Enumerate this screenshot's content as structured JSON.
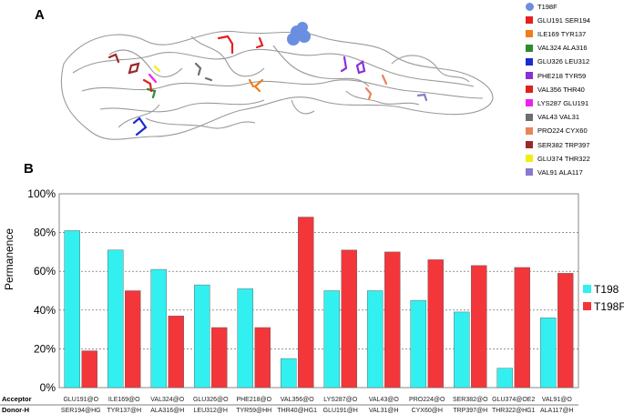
{
  "panels": {
    "a": "A",
    "b": "B"
  },
  "structure_legend": [
    {
      "label": "T198F",
      "color": "#6a8fe0",
      "shape": "circle"
    },
    {
      "label": "GLU191 SER194",
      "color": "#e52020",
      "shape": "square"
    },
    {
      "label": "ILE169 TYR137",
      "color": "#f07d1a",
      "shape": "square"
    },
    {
      "label": "VAL324 ALA316",
      "color": "#2e8b2e",
      "shape": "square"
    },
    {
      "label": "GLU326 LEU312",
      "color": "#1a2ccf",
      "shape": "square"
    },
    {
      "label": "PHE218 TYR59",
      "color": "#8a2fd6",
      "shape": "square"
    },
    {
      "label": "VAL356 THR40",
      "color": "#e0201a",
      "shape": "square"
    },
    {
      "label": "LYS287 GLU191",
      "color": "#ee22ee",
      "shape": "square"
    },
    {
      "label": "VAL43 VAL31",
      "color": "#6e6e6e",
      "shape": "square"
    },
    {
      "label": "PRO224 CYX60",
      "color": "#e8845a",
      "shape": "square"
    },
    {
      "label": "SER382 TRP397",
      "color": "#9a2a2a",
      "shape": "square"
    },
    {
      "label": "GLU374 THR322",
      "color": "#f2ee10",
      "shape": "square"
    },
    {
      "label": "VAL91 ALA117",
      "color": "#8a78cc",
      "shape": "square"
    }
  ],
  "chart_data": {
    "type": "bar",
    "ylabel": "Permanence",
    "ylim": [
      0,
      100
    ],
    "yticks": [
      "0%",
      "20%",
      "40%",
      "60%",
      "80%",
      "100%"
    ],
    "grid": true,
    "legend_position": "right",
    "row_headers": {
      "acceptor": "Acceptor",
      "donor": "Donor-H"
    },
    "acceptors": [
      "GLU191@O",
      "ILE169@O",
      "VAL324@O",
      "GLU326@O",
      "PHE218@O",
      "VAL356@O",
      "LYS287@O",
      "VAL43@O",
      "PRO224@O",
      "SER382@O",
      "GLU374@OE2",
      "VAL91@O"
    ],
    "donors": [
      "SER194@HG",
      "TYR137@H",
      "ALA316@H",
      "LEU312@H",
      "TYR59@HH",
      "THR40@HG1",
      "GLU191@H",
      "VAL31@H",
      "CYX60@H",
      "TRP397@H",
      "THR322@HG1",
      "ALA117@H"
    ],
    "series": [
      {
        "name": "T198",
        "color": "#33f0f0",
        "values": [
          81,
          71,
          61,
          53,
          51,
          15,
          50,
          50,
          45,
          39,
          10,
          36
        ]
      },
      {
        "name": "T198F",
        "color": "#f2363a",
        "values": [
          19,
          50,
          37,
          31,
          31,
          88,
          71,
          70,
          66,
          63,
          62,
          59
        ]
      }
    ]
  }
}
